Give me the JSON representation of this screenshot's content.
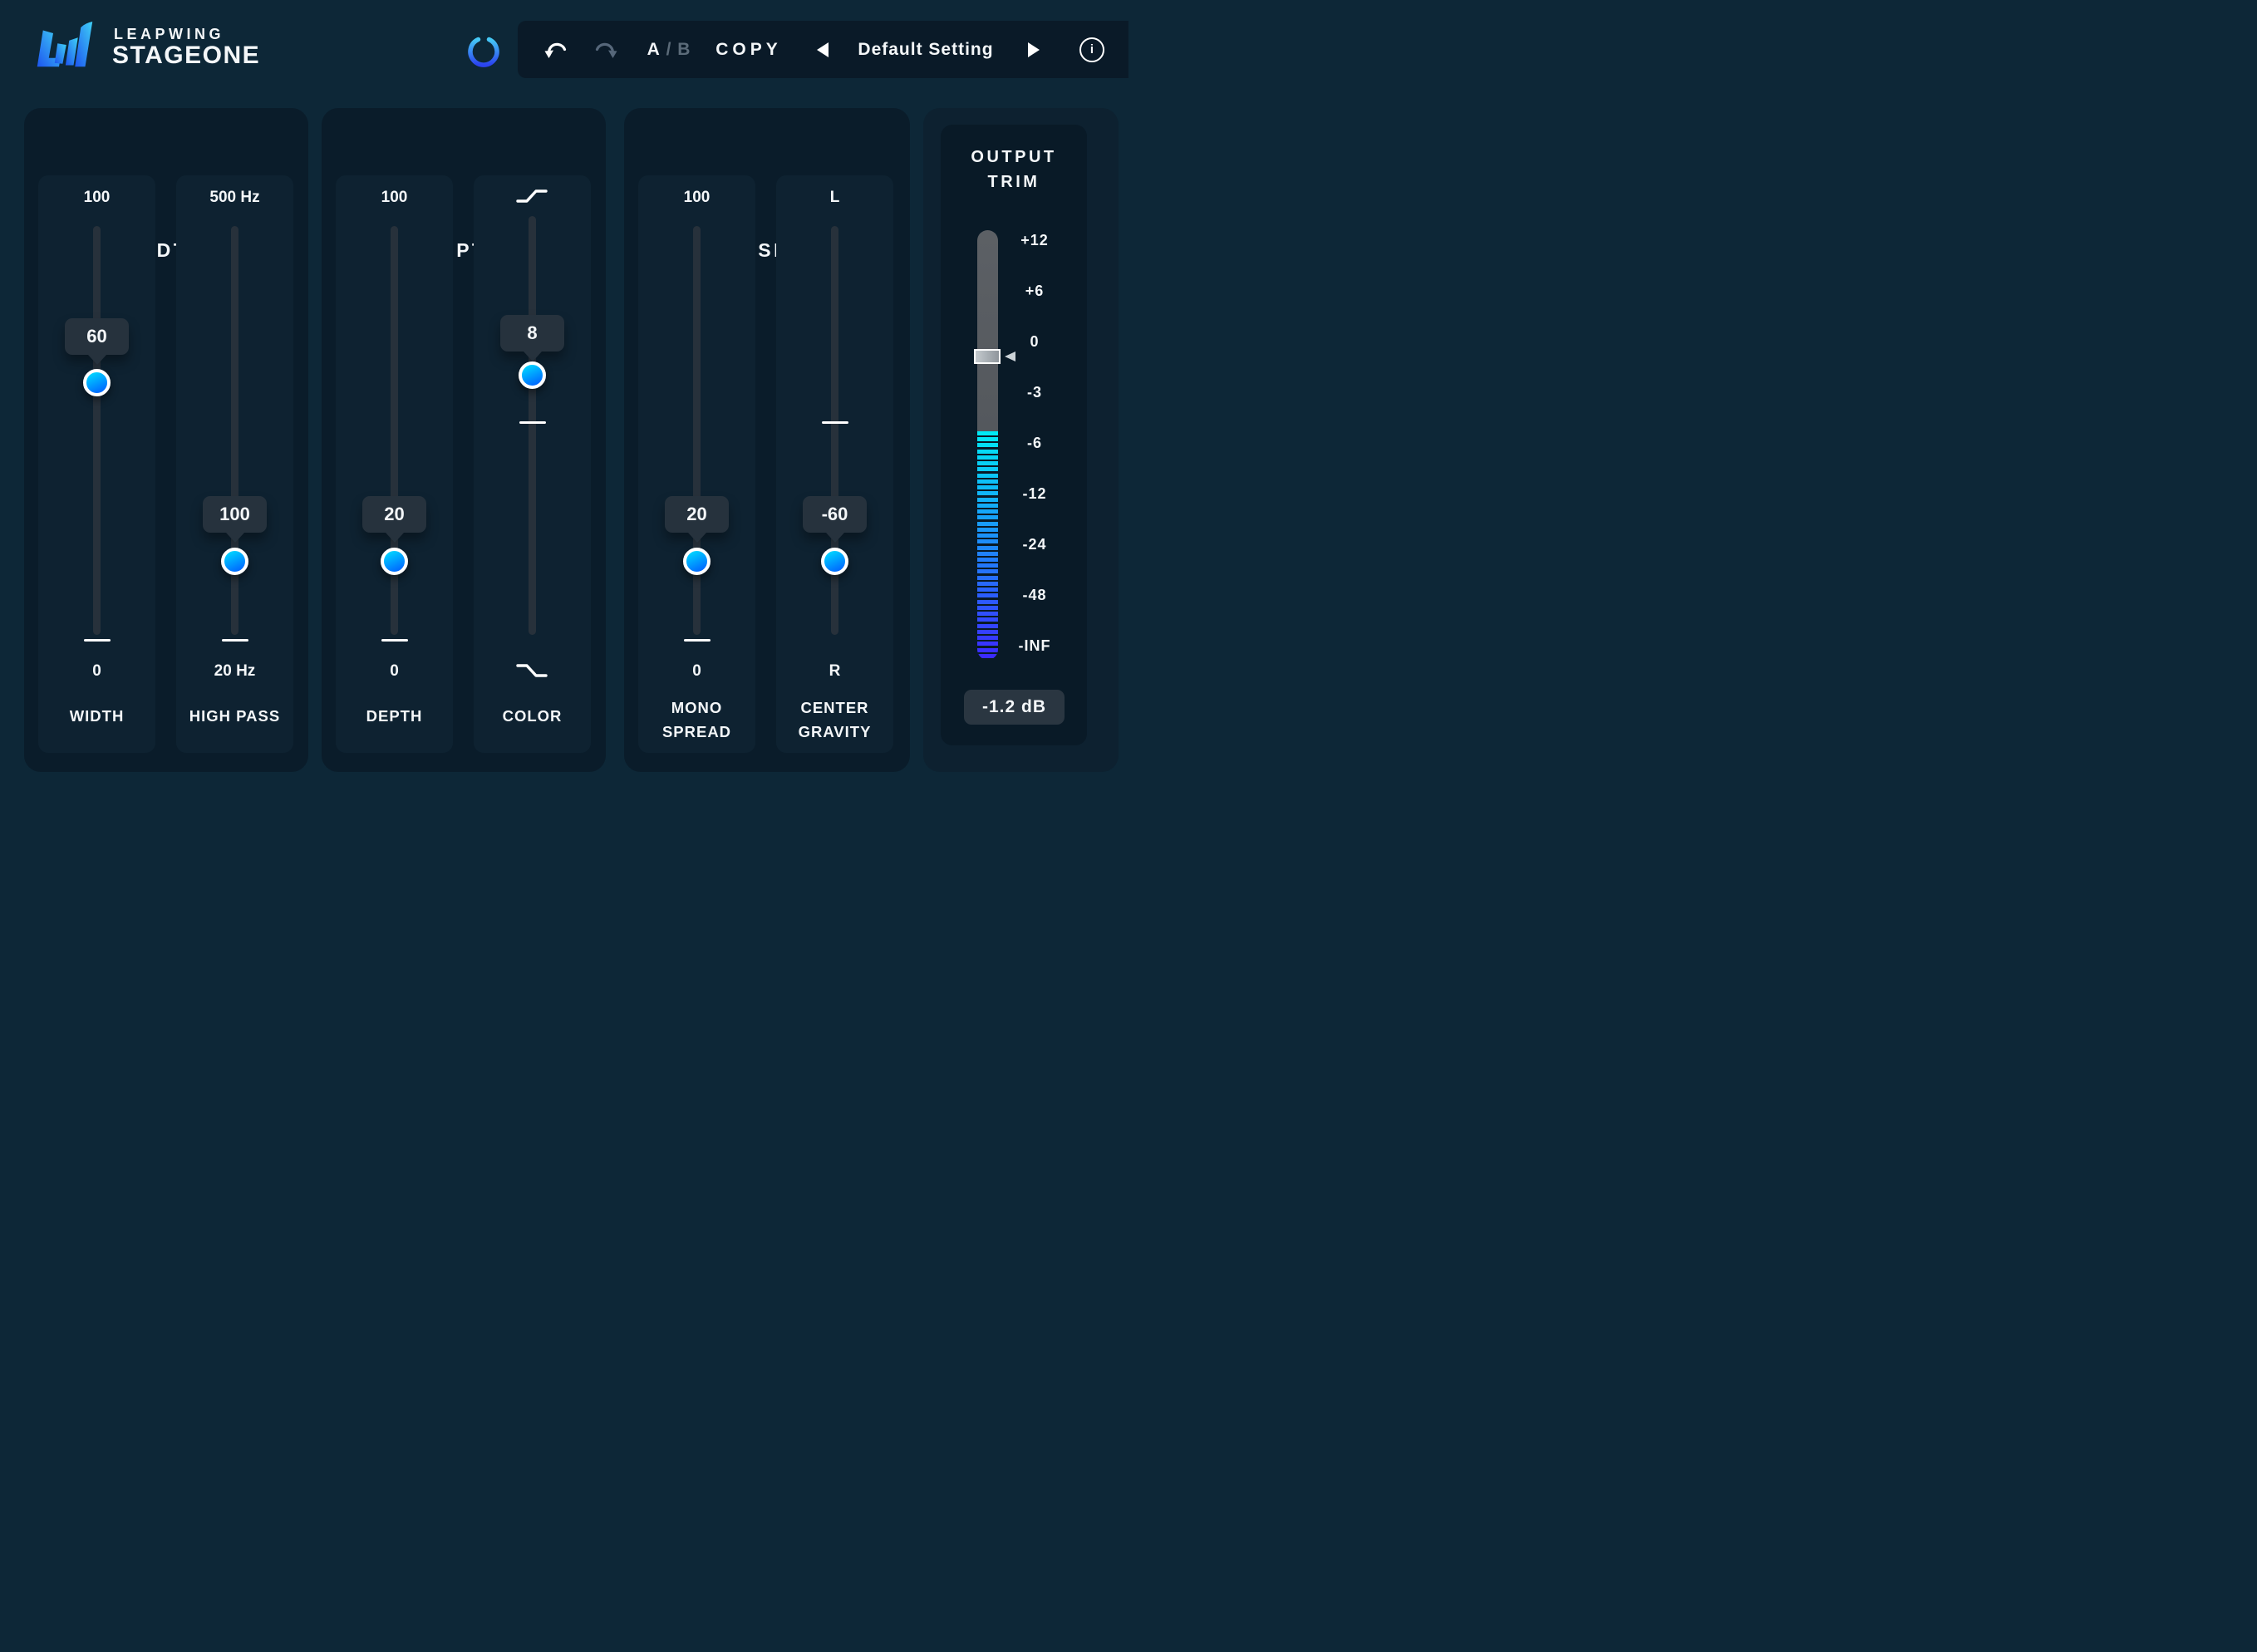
{
  "brand": {
    "name_top": "LEAPWING",
    "name_bottom": "STAGEONE"
  },
  "toolbar": {
    "ab_a": "A",
    "ab_sep": " / ",
    "ab_b": "B",
    "copy_label": "COPY",
    "preset_name": "Default Setting"
  },
  "panels": {
    "width": {
      "title": "WIDTH"
    },
    "depth": {
      "title": "DEPTH"
    },
    "mono": {
      "title": "MONO SPREAD"
    },
    "output": {
      "title_line1": "OUTPUT",
      "title_line2": "TRIM",
      "scale": [
        "+12",
        "+6",
        "0",
        "-3",
        "-6",
        "-12",
        "-24",
        "-48",
        "-INF"
      ],
      "readout": "-1.2 dB"
    }
  },
  "sliders": {
    "width": {
      "max": "100",
      "value": "60",
      "min": "0",
      "label": "WIDTH"
    },
    "high_pass": {
      "max": "500 Hz",
      "value": "100",
      "min": "20 Hz",
      "label": "HIGH PASS"
    },
    "depth": {
      "max": "100",
      "value": "20",
      "min": "0",
      "label": "DEPTH"
    },
    "color": {
      "value": "8",
      "label": "COLOR",
      "top_icon": "high-shelf-curve",
      "bottom_icon": "low-shelf-curve"
    },
    "mono_spread": {
      "max": "100",
      "value": "20",
      "min": "0",
      "label_line1": "MONO",
      "label_line2": "SPREAD"
    },
    "center_gravity": {
      "max": "L",
      "value": "-60",
      "min": "R",
      "label_line1": "CENTER",
      "label_line2": "GRAVITY"
    }
  },
  "icons": {
    "power": "power-symbol",
    "undo": "curved-arrow-left",
    "redo": "curved-arrow-right",
    "prev_preset": "left-triangle",
    "next_preset": "right-triangle",
    "info": "i"
  },
  "colors": {
    "page_bg": "#0d2737",
    "panel_bg": "#0a1c2a",
    "column_bg": "#0e2231",
    "toolbar_bg": "#0a1a28",
    "track": "#27313b",
    "badge_bg": "#26323d",
    "handle_gradient_top": "#00d2ff",
    "handle_gradient_bottom": "#0068ff",
    "meter_gray": "#55595e",
    "meter_top": "#00e9f5",
    "meter_bottom": "#3b2bff",
    "power_gradient_top": "#45c8f5",
    "power_gradient_bottom": "#2b43f0"
  }
}
